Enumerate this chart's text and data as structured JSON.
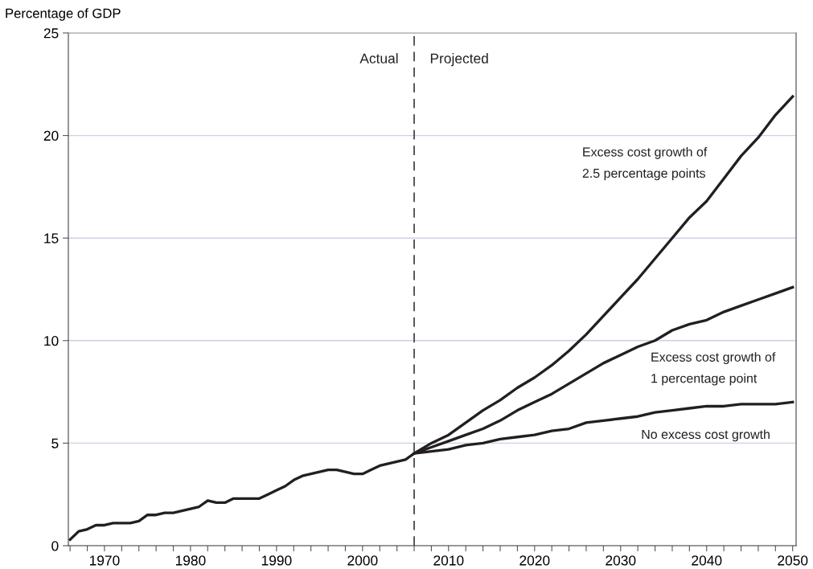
{
  "chart_data": {
    "type": "line",
    "ylabel": "Percentage of GDP",
    "xlim": [
      1965.8,
      2050.4
    ],
    "ylim": [
      0,
      25
    ],
    "yticks": [
      0,
      5,
      10,
      15,
      20,
      25
    ],
    "xticks": [
      {
        "value": 1966,
        "label": null
      },
      {
        "value": 1968,
        "label": null
      },
      1970,
      {
        "value": 1972,
        "label": null
      },
      {
        "value": 1974,
        "label": null
      },
      {
        "value": 1976,
        "label": null
      },
      {
        "value": 1978,
        "label": null
      },
      1980,
      {
        "value": 1982,
        "label": null
      },
      {
        "value": 1984,
        "label": null
      },
      {
        "value": 1986,
        "label": null
      },
      {
        "value": 1988,
        "label": null
      },
      1990,
      {
        "value": 1992,
        "label": null
      },
      {
        "value": 1994,
        "label": null
      },
      {
        "value": 1996,
        "label": null
      },
      {
        "value": 1998,
        "label": null
      },
      2000,
      {
        "value": 2002,
        "label": null
      },
      {
        "value": 2004,
        "label": null
      },
      {
        "value": 2006,
        "label": null
      },
      {
        "value": 2008,
        "label": null
      },
      2010,
      {
        "value": 2012,
        "label": null
      },
      {
        "value": 2014,
        "label": null
      },
      {
        "value": 2016,
        "label": null
      },
      {
        "value": 2018,
        "label": null
      },
      2020,
      {
        "value": 2022,
        "label": null
      },
      {
        "value": 2024,
        "label": null
      },
      {
        "value": 2026,
        "label": null
      },
      {
        "value": 2028,
        "label": null
      },
      2030,
      {
        "value": 2032,
        "label": null
      },
      {
        "value": 2034,
        "label": null
      },
      {
        "value": 2036,
        "label": null
      },
      {
        "value": 2038,
        "label": null
      },
      2040,
      {
        "value": 2042,
        "label": null
      },
      {
        "value": 2044,
        "label": null
      },
      {
        "value": 2046,
        "label": null
      },
      {
        "value": 2048,
        "label": null
      },
      2050
    ],
    "grid": "y",
    "legend": false,
    "marker": "none",
    "line_style": "solid",
    "series": [
      {
        "name": "Excess cost growth of\n2.5 percentage points",
        "color": "#231f20",
        "x": [
          2006,
          2008,
          2010,
          2012,
          2014,
          2016,
          2018,
          2020,
          2022,
          2024,
          2026,
          2028,
          2030,
          2032,
          2034,
          2036,
          2038,
          2040,
          2042,
          2044,
          2046,
          2048,
          2050
        ],
        "values": [
          4.5,
          5.0,
          5.4,
          6.0,
          6.6,
          7.1,
          7.7,
          8.2,
          8.8,
          9.5,
          10.3,
          11.2,
          12.1,
          13.0,
          14.0,
          15.0,
          16.0,
          16.8,
          17.9,
          19.0,
          19.9,
          21.0,
          21.9
        ]
      },
      {
        "name": "Excess cost growth of\n1 percentage point",
        "color": "#231f20",
        "x": [
          2006,
          2008,
          2010,
          2012,
          2014,
          2016,
          2018,
          2020,
          2022,
          2024,
          2026,
          2028,
          2030,
          2032,
          2034,
          2036,
          2038,
          2040,
          2042,
          2044,
          2046,
          2048,
          2050
        ],
        "values": [
          4.5,
          4.8,
          5.1,
          5.4,
          5.7,
          6.1,
          6.6,
          7.0,
          7.4,
          7.9,
          8.4,
          8.9,
          9.3,
          9.7,
          10.0,
          10.5,
          10.8,
          11.0,
          11.4,
          11.7,
          12.0,
          12.3,
          12.6
        ]
      },
      {
        "name": "No excess cost growth",
        "color": "#231f20",
        "x": [
          1966,
          1967,
          1968,
          1969,
          1970,
          1971,
          1972,
          1973,
          1974,
          1975,
          1976,
          1977,
          1978,
          1979,
          1980,
          1981,
          1982,
          1983,
          1984,
          1985,
          1986,
          1987,
          1988,
          1989,
          1990,
          1991,
          1992,
          1993,
          1994,
          1995,
          1996,
          1997,
          1998,
          1999,
          2000,
          2001,
          2002,
          2003,
          2004,
          2005,
          2006,
          2008,
          2010,
          2012,
          2014,
          2016,
          2018,
          2020,
          2022,
          2024,
          2026,
          2028,
          2030,
          2032,
          2034,
          2036,
          2038,
          2040,
          2042,
          2044,
          2046,
          2048,
          2050
        ],
        "values": [
          0.3,
          0.7,
          0.8,
          1.0,
          1.0,
          1.1,
          1.1,
          1.1,
          1.2,
          1.5,
          1.5,
          1.6,
          1.6,
          1.7,
          1.8,
          1.9,
          2.2,
          2.1,
          2.1,
          2.3,
          2.3,
          2.3,
          2.3,
          2.5,
          2.7,
          2.9,
          3.2,
          3.4,
          3.5,
          3.6,
          3.7,
          3.7,
          3.6,
          3.5,
          3.5,
          3.7,
          3.9,
          4.0,
          4.1,
          4.2,
          4.5,
          4.6,
          4.7,
          4.9,
          5.0,
          5.2,
          5.3,
          5.4,
          5.6,
          5.7,
          6.0,
          6.1,
          6.2,
          6.3,
          6.5,
          6.6,
          6.7,
          6.8,
          6.8,
          6.9,
          6.9,
          6.9,
          7.0
        ]
      }
    ],
    "ref_lines": [
      {
        "axis": "x",
        "value": 2006,
        "color": "#555555",
        "line_style": "dashed"
      }
    ],
    "annotations": [
      "Actual",
      "Projected"
    ]
  }
}
